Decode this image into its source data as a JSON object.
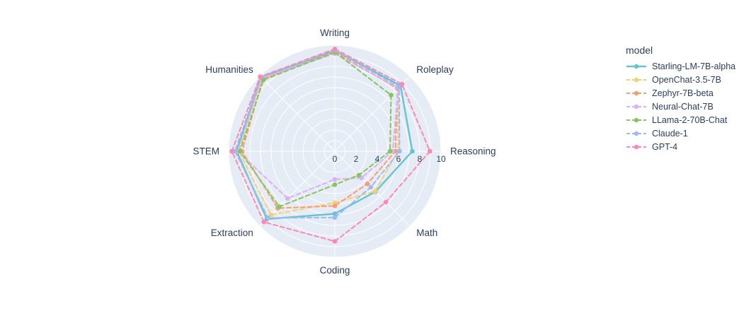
{
  "colors": {
    "page_background": "#ffffff",
    "plot_background": "#E5ECF6",
    "grid": "#ffffff",
    "text": "#2a3f5f"
  },
  "legend": {
    "title": "model"
  },
  "chart_data": {
    "type": "radar",
    "title": "",
    "legend_title": "model",
    "legend_position": "right",
    "grid": true,
    "range": [
      0,
      10
    ],
    "radial_ticks": [
      0,
      2,
      4,
      6,
      8,
      10
    ],
    "grid_step": 1,
    "categories": [
      "Writing",
      "Roleplay",
      "Reasoning",
      "Math",
      "Coding",
      "Extraction",
      "STEM",
      "Humanities"
    ],
    "series": [
      {
        "name": "Starling-LM-7B-alpha",
        "color": "#66C5CC",
        "dash": "solid",
        "values": [
          9.5,
          8.75,
          7.3,
          5.4,
          5.9,
          9.05,
          9.25,
          9.85
        ]
      },
      {
        "name": "OpenChat-3.5-7B",
        "color": "#F6CF71",
        "dash": "dash",
        "values": [
          9.25,
          8.4,
          5.95,
          5.35,
          4.85,
          8.5,
          9.05,
          9.7
        ]
      },
      {
        "name": "Zephyr-7B-beta",
        "color": "#F89C74",
        "dash": "dash",
        "values": [
          9.4,
          8.35,
          5.7,
          4.35,
          5.15,
          7.6,
          8.75,
          9.6
        ]
      },
      {
        "name": "Neural-Chat-7B",
        "color": "#DCB0F2",
        "dash": "dash",
        "values": [
          9.2,
          8.45,
          5.45,
          3.55,
          2.65,
          6.3,
          9.15,
          9.75
        ]
      },
      {
        "name": "LLama-2-70B-Chat",
        "color": "#87C55F",
        "dash": "dash",
        "values": [
          9.35,
          7.5,
          5.2,
          3.2,
          3.15,
          7.4,
          8.95,
          9.5
        ]
      },
      {
        "name": "Claude-1",
        "color": "#9EB9F3",
        "dash": "dash",
        "values": [
          9.55,
          8.55,
          6.1,
          4.8,
          6.25,
          8.9,
          9.4,
          9.9
        ]
      },
      {
        "name": "GPT-4",
        "color": "#FE88B1",
        "dash": "dash",
        "values": [
          9.65,
          8.95,
          8.95,
          6.8,
          8.5,
          9.45,
          9.7,
          9.95
        ]
      }
    ]
  }
}
